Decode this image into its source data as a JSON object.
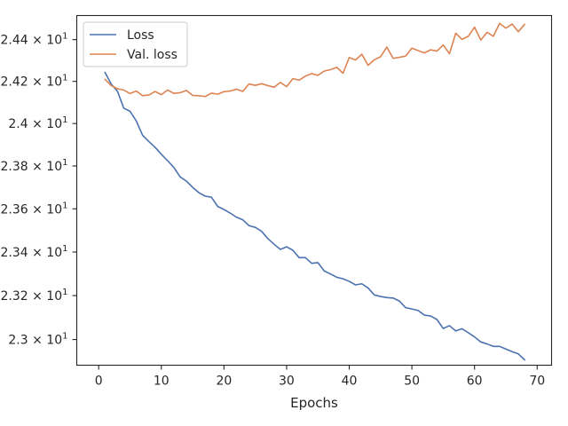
{
  "chart_data": {
    "type": "line",
    "title": "",
    "xlabel": "Epochs",
    "ylabel": "",
    "xlim": [
      -3.5,
      72.3
    ],
    "ylim": [
      22.884,
      24.516
    ],
    "x_ticks": [
      0,
      10,
      20,
      30,
      40,
      50,
      60,
      70
    ],
    "x_tick_labels": [
      "0",
      "10",
      "20",
      "30",
      "40",
      "50",
      "60",
      "70"
    ],
    "y_ticks": [
      23.0,
      23.2,
      23.4,
      23.6,
      23.8,
      24.0,
      24.2,
      24.4
    ],
    "y_tick_labels": [
      {
        "mantissa": "2.3",
        "times": "×",
        "base": "10",
        "exp": "1"
      },
      {
        "mantissa": "2.32",
        "times": "×",
        "base": "10",
        "exp": "1"
      },
      {
        "mantissa": "2.34",
        "times": "×",
        "base": "10",
        "exp": "1"
      },
      {
        "mantissa": "2.36",
        "times": "×",
        "base": "10",
        "exp": "1"
      },
      {
        "mantissa": "2.38",
        "times": "×",
        "base": "10",
        "exp": "1"
      },
      {
        "mantissa": "2.4",
        "times": "×",
        "base": "10",
        "exp": "1"
      },
      {
        "mantissa": "2.42",
        "times": "×",
        "base": "10",
        "exp": "1"
      },
      {
        "mantissa": "2.44",
        "times": "×",
        "base": "10",
        "exp": "1"
      }
    ],
    "y_scale": "log",
    "grid": false,
    "legend_position": "top-left",
    "x": [
      1,
      2,
      3,
      4,
      5,
      6,
      7,
      8,
      9,
      10,
      11,
      12,
      13,
      14,
      15,
      16,
      17,
      18,
      19,
      20,
      21,
      22,
      23,
      24,
      25,
      26,
      27,
      28,
      29,
      30,
      31,
      32,
      33,
      34,
      35,
      36,
      37,
      38,
      39,
      40,
      41,
      42,
      43,
      44,
      45,
      46,
      47,
      48,
      49,
      50,
      51,
      52,
      53,
      54,
      55,
      56,
      57,
      58,
      59,
      60,
      61,
      62,
      63,
      64,
      65,
      66,
      67,
      68
    ],
    "series": [
      {
        "name": "Loss",
        "color": "#4c72b0",
        "values": [
          24.243,
          24.187,
          24.153,
          24.073,
          24.058,
          24.012,
          23.945,
          23.915,
          23.888,
          23.855,
          23.825,
          23.793,
          23.749,
          23.729,
          23.7,
          23.675,
          23.659,
          23.654,
          23.611,
          23.597,
          23.58,
          23.561,
          23.549,
          23.522,
          23.514,
          23.496,
          23.462,
          23.436,
          23.412,
          23.424,
          23.408,
          23.374,
          23.374,
          23.348,
          23.351,
          23.313,
          23.299,
          23.284,
          23.277,
          23.265,
          23.249,
          23.254,
          23.235,
          23.203,
          23.196,
          23.191,
          23.189,
          23.175,
          23.145,
          23.139,
          23.132,
          23.111,
          23.107,
          23.091,
          23.05,
          23.063,
          23.039,
          23.049,
          23.031,
          23.012,
          22.989,
          22.98,
          22.969,
          22.969,
          22.957,
          22.945,
          22.935,
          22.908
        ]
      },
      {
        "name": "Val. loss",
        "color": "#dd8452",
        "values": [
          24.21,
          24.18,
          24.165,
          24.159,
          24.142,
          24.154,
          24.132,
          24.135,
          24.152,
          24.137,
          24.159,
          24.143,
          24.146,
          24.157,
          24.133,
          24.132,
          24.128,
          24.144,
          24.139,
          24.151,
          24.154,
          24.163,
          24.152,
          24.188,
          24.181,
          24.189,
          24.18,
          24.172,
          24.195,
          24.175,
          24.213,
          24.206,
          24.225,
          24.237,
          24.229,
          24.249,
          24.256,
          24.267,
          24.239,
          24.314,
          24.302,
          24.33,
          24.277,
          24.303,
          24.318,
          24.364,
          24.31,
          24.315,
          24.321,
          24.359,
          24.347,
          24.336,
          24.351,
          24.345,
          24.374,
          24.332,
          24.431,
          24.401,
          24.416,
          24.46,
          24.398,
          24.435,
          24.416,
          24.478,
          24.455,
          24.475,
          24.438,
          24.474
        ]
      }
    ]
  }
}
